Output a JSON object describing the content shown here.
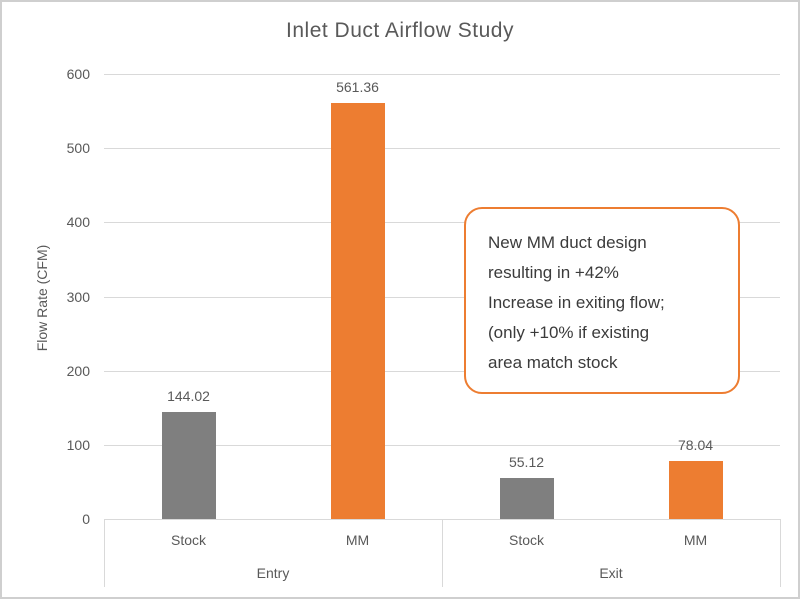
{
  "chart_data": {
    "type": "bar",
    "title": "Inlet Duct Airflow Study",
    "ylabel": "Flow Rate (CFM)",
    "xlabel": "",
    "ylim": [
      0,
      600
    ],
    "yticks": [
      0,
      100,
      200,
      300,
      400,
      500,
      600
    ],
    "grid": true,
    "legend_position": "none",
    "groups": [
      {
        "label": "Entry",
        "bars": [
          {
            "label": "Stock",
            "value": 144.02,
            "display": "144.02",
            "color": "#7F7F7F"
          },
          {
            "label": "MM",
            "value": 561.36,
            "display": "561.36",
            "color": "#ED7D31"
          }
        ]
      },
      {
        "label": "Exit",
        "bars": [
          {
            "label": "Stock",
            "value": 55.12,
            "display": "55.12",
            "color": "#7F7F7F"
          },
          {
            "label": "MM",
            "value": 78.04,
            "display": "78.04",
            "color": "#ED7D31"
          }
        ]
      }
    ],
    "annotation": {
      "lines": [
        "New MM duct design",
        "resulting in +42%",
        "Increase in exiting flow;",
        "(only +10% if existing",
        "area match stock"
      ],
      "border_color": "#ED7D31",
      "fill_color": "#FFFFFF",
      "text_color": "#3B3B3B"
    },
    "colors": {
      "series_stock": "#7F7F7F",
      "series_mm": "#ED7D31",
      "axis_text": "#595959",
      "gridline": "#D9D9D9"
    }
  }
}
